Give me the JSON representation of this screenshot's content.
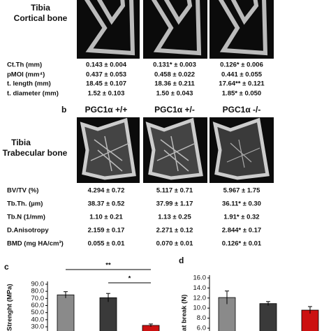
{
  "panel_a": {
    "row_label": [
      "Tibia",
      "Cortical bone"
    ],
    "table": {
      "rows": [
        [
          "Ct.Th (mm)",
          "0.143 ± 0.004",
          "0.131* ± 0.003",
          "0.126* ± 0.006"
        ],
        [
          "pMOI (mm⁴)",
          "0.437 ± 0.053",
          "0.458 ± 0.022",
          "0.441 ± 0.055"
        ],
        [
          "t. length (mm)",
          "18.45 ± 0.107",
          "18.36 ± 0.211",
          "17.64** ± 0.121"
        ],
        [
          "t. diameter (mm)",
          "1.52 ± 0.103",
          "1.50 ± 0.043",
          "1.85* ± 0.050"
        ]
      ]
    }
  },
  "panel_b": {
    "label": "b",
    "headers": [
      "PGC1α +/+",
      "PGC1α +/-",
      "PGC1α -/-"
    ],
    "row_label": [
      "Tibia",
      "Trabecular bone"
    ],
    "table": {
      "rows": [
        [
          "BV/TV (%)",
          "4.294 ± 0.72",
          "5.117 ± 0.71",
          "5.967 ± 1.75"
        ],
        [
          "Tb.Th. (µm)",
          "38.37 ± 0.52",
          "37.99 ± 1.17",
          "36.11* ± 0.30"
        ],
        [
          "Tb.N (1/mm)",
          "1.10 ± 0.21",
          "1.13 ± 0.25",
          "1.91* ± 0.32"
        ],
        [
          "D.Anisotropy",
          "2.159 ± 0.17",
          "2.271 ± 0.12",
          "2.844* ± 0.17"
        ],
        [
          "BMD (mg HA/cm³)",
          "0.055 ± 0.01",
          "0.070 ± 0.01",
          "0.126* ± 0.01"
        ]
      ]
    }
  },
  "chart_data": [
    {
      "type": "bar",
      "panel_label": "c",
      "ylabel": "Strenght (MPa)",
      "categories": [
        null,
        null,
        null
      ],
      "values": [
        75,
        71,
        32
      ],
      "errors": [
        4.5,
        6,
        2
      ],
      "colors": [
        "#8a8a8a",
        "#3a3a3a",
        "#cc1111"
      ],
      "ylim": [
        30,
        90
      ],
      "yticks": [
        {
          "value": 90,
          "label": "90.0"
        },
        {
          "value": 80,
          "label": "80.0"
        },
        {
          "value": 70,
          "label": "70.0"
        },
        {
          "value": 60,
          "label": "60.0"
        },
        {
          "value": 50,
          "label": "50.0"
        },
        {
          "value": 40,
          "label": "40.0"
        },
        {
          "value": 30,
          "label": "30.0"
        }
      ],
      "annotations": [
        "**",
        "*"
      ]
    },
    {
      "type": "bar",
      "panel_label": "d",
      "ylabel": "at break (N)",
      "categories": [
        null,
        null,
        null
      ],
      "values": [
        12.1,
        10.9,
        9.6
      ],
      "errors": [
        1.3,
        0.4,
        0.7
      ],
      "colors": [
        "#8a8a8a",
        "#3a3a3a",
        "#cc1111"
      ],
      "ylim": [
        6,
        16
      ],
      "yticks": [
        {
          "value": 16,
          "label": "16.0"
        },
        {
          "value": 14,
          "label": "14.0"
        },
        {
          "value": 12,
          "label": "12.0"
        },
        {
          "value": 10,
          "label": "10.0"
        },
        {
          "value": 8,
          "label": "8.0"
        },
        {
          "value": 6,
          "label": "6.0"
        }
      ]
    }
  ]
}
